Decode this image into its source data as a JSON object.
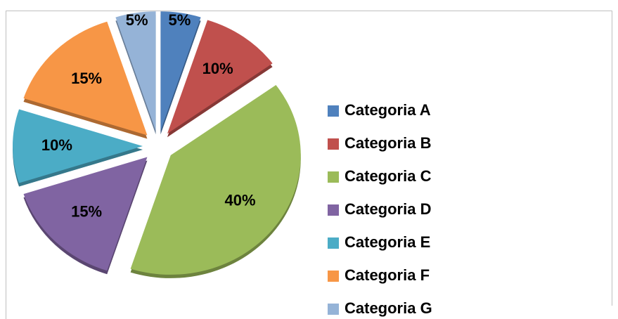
{
  "chart_data": {
    "type": "pie",
    "categories": [
      "Categoria A",
      "Categoria B",
      "Categoria C",
      "Categoria D",
      "Categoria E",
      "Categoria F",
      "Categoria G"
    ],
    "values": [
      5,
      10,
      40,
      15,
      10,
      15,
      5
    ],
    "value_labels": [
      "5%",
      "10%",
      "40%",
      "15%",
      "10%",
      "15%",
      "5%"
    ],
    "colors": [
      "#4f81bd",
      "#c0504d",
      "#9bbb59",
      "#8064a2",
      "#4bacc6",
      "#f79646",
      "#95b3d7"
    ],
    "legend": "right"
  }
}
